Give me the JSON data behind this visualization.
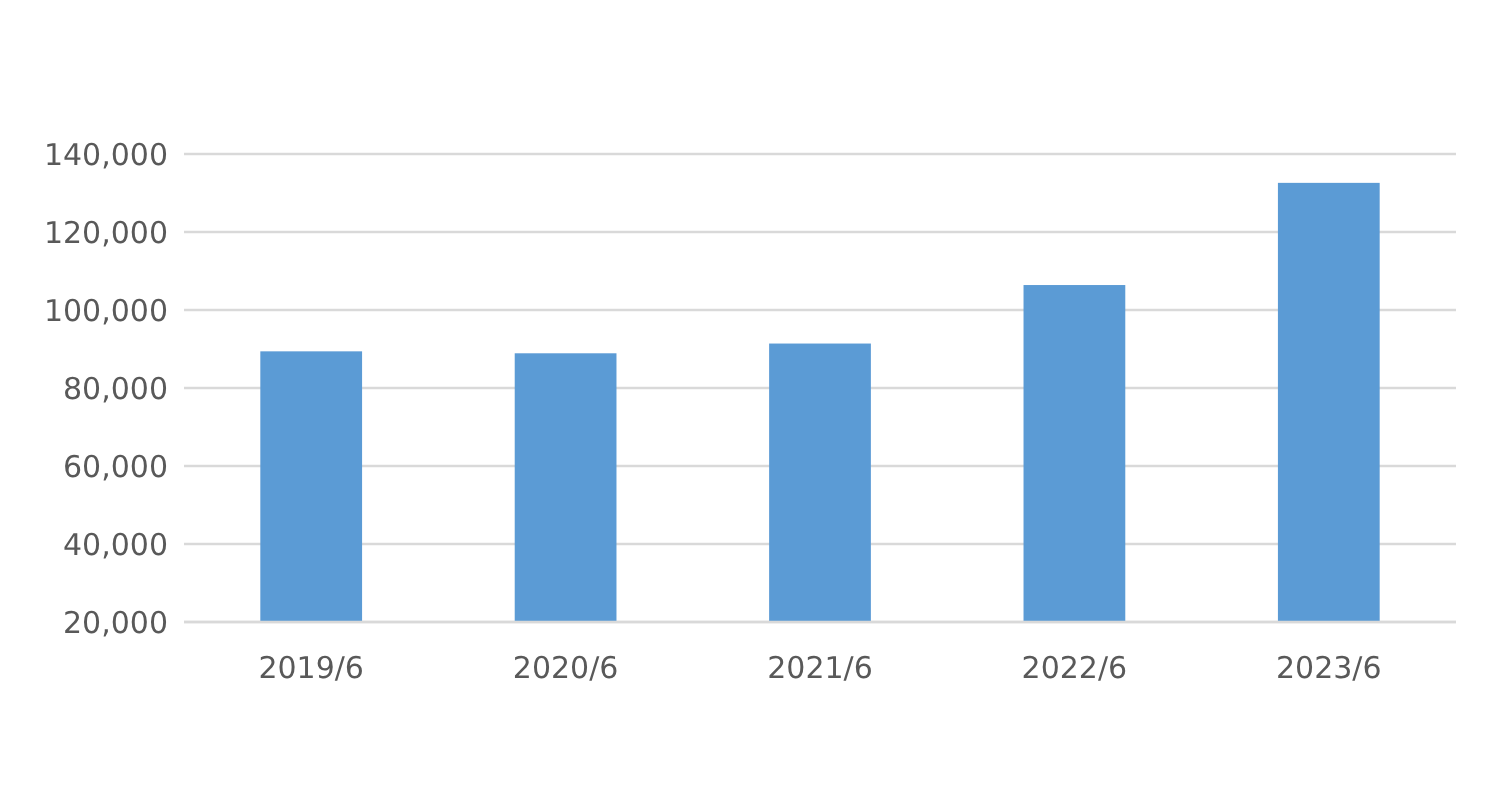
{
  "chart_data": {
    "type": "bar",
    "categories": [
      "2019/6",
      "2020/6",
      "2021/6",
      "2022/6",
      "2023/6"
    ],
    "values": [
      89400,
      88900,
      91400,
      106400,
      132600
    ],
    "color": "#5b9bd5",
    "ylim": [
      20000,
      140000
    ],
    "yticks": [
      {
        "value": 20000,
        "label": "20,000"
      },
      {
        "value": 40000,
        "label": "40,000"
      },
      {
        "value": 60000,
        "label": "60,000"
      },
      {
        "value": 80000,
        "label": "80,000"
      },
      {
        "value": 100000,
        "label": "100,000"
      },
      {
        "value": 120000,
        "label": "120,000"
      },
      {
        "value": 140000,
        "label": "140,000"
      }
    ],
    "grid": "y"
  }
}
